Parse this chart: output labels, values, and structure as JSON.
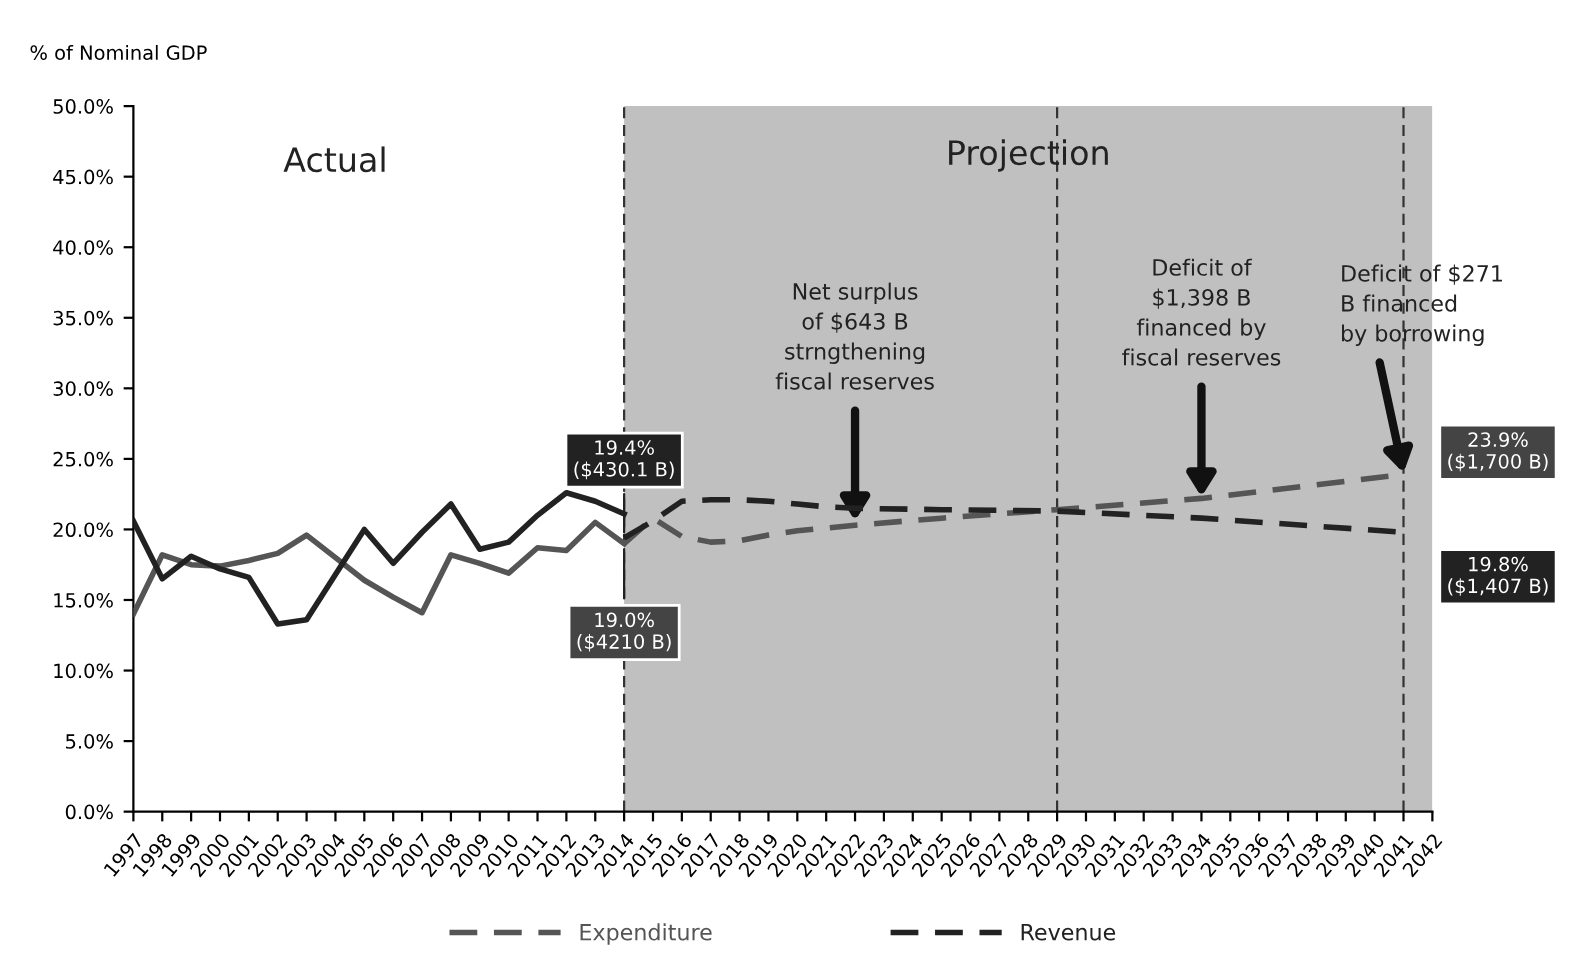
{
  "chart_data": {
    "type": "line",
    "ylabel": "% of Nominal GDP",
    "xlim": [
      1997,
      2042
    ],
    "xticks": [
      1997,
      1998,
      1999,
      2000,
      2001,
      2002,
      2003,
      2004,
      2005,
      2006,
      2007,
      2008,
      2009,
      2010,
      2011,
      2012,
      2013,
      2014,
      2015,
      2016,
      2017,
      2018,
      2019,
      2020,
      2021,
      2022,
      2023,
      2024,
      2025,
      2026,
      2027,
      2028,
      2029,
      2030,
      2031,
      2032,
      2033,
      2034,
      2035,
      2036,
      2037,
      2038,
      2039,
      2040,
      2041,
      2042
    ],
    "ylim": [
      0,
      50
    ],
    "yticks": [
      {
        "value": 0,
        "label": "0.0%"
      },
      {
        "value": 5,
        "label": "5.0%"
      },
      {
        "value": 10,
        "label": "10.0%"
      },
      {
        "value": 15,
        "label": "15.0%"
      },
      {
        "value": 20,
        "label": "20.0%"
      },
      {
        "value": 25,
        "label": "25.0%"
      },
      {
        "value": 30,
        "label": "30.0%"
      },
      {
        "value": 35,
        "label": "35.0%"
      },
      {
        "value": 40,
        "label": "40.0%"
      },
      {
        "value": 45,
        "label": "45.0%"
      },
      {
        "value": 50,
        "label": "50.0%"
      }
    ],
    "series": [
      {
        "color": "#555555",
        "line_style": "solid",
        "x": [
          1997,
          1998,
          1999,
          2000,
          2001,
          2002,
          2003,
          2004,
          2005,
          2006,
          2007,
          2008,
          2009,
          2010,
          2011,
          2012,
          2013,
          2014
        ],
        "values": [
          14.0,
          18.2,
          17.5,
          17.4,
          17.8,
          18.3,
          19.6,
          18.0,
          16.4,
          15.2,
          14.1,
          18.2,
          17.6,
          16.9,
          18.7,
          18.5,
          20.5,
          19.0
        ]
      },
      {
        "color": "#222222",
        "line_style": "solid",
        "x": [
          1997,
          1998,
          1999,
          2000,
          2001,
          2002,
          2003,
          2004,
          2005,
          2006,
          2007,
          2008,
          2009,
          2010,
          2011,
          2012,
          2013,
          2014
        ],
        "values": [
          20.6,
          16.5,
          18.1,
          17.2,
          16.6,
          13.3,
          13.6,
          16.8,
          20.0,
          17.6,
          19.8,
          21.8,
          18.6,
          19.1,
          21.0,
          22.6,
          22.0,
          21.1
        ]
      },
      {
        "name": "Expenditure",
        "color": "#555555",
        "line_style": "dashed",
        "x": [
          2014,
          2015,
          2016,
          2017,
          2018,
          2019,
          2020,
          2021,
          2022,
          2025,
          2029,
          2034,
          2041
        ],
        "values": [
          19.0,
          20.8,
          19.5,
          19.1,
          19.2,
          19.6,
          19.9,
          20.1,
          20.3,
          20.8,
          21.4,
          22.2,
          23.9
        ]
      },
      {
        "name": "Revenue",
        "color": "#222222",
        "line_style": "dashed",
        "x": [
          2014,
          2015,
          2016,
          2017,
          2018,
          2019,
          2020,
          2021,
          2022,
          2025,
          2029,
          2034,
          2041
        ],
        "values": [
          19.4,
          20.6,
          22.0,
          22.1,
          22.1,
          22.0,
          21.8,
          21.6,
          21.5,
          21.4,
          21.3,
          20.8,
          19.8
        ]
      }
    ],
    "bands": [
      {
        "axis": "x",
        "from": 2014,
        "to": 2042,
        "label": "Projection",
        "color": "#c0c0c0"
      }
    ],
    "ref_lines": [
      {
        "axis": "x",
        "value": 2014,
        "line_style": "dashed"
      },
      {
        "axis": "x",
        "value": 2029,
        "line_style": "dashed"
      },
      {
        "axis": "x",
        "value": 2041,
        "line_style": "dashed"
      }
    ],
    "annotations": [
      "Actual",
      {
        "text": "Net surplus\nof $643 B\nstrngthening\nfiscal reserves",
        "x": 2022,
        "y": 20.6
      },
      {
        "text": "Deficit of\n$1,398 B\nfinanced by\nfiscal reserves",
        "x": 2034,
        "y": 22.3
      },
      {
        "text": "Deficit of $271\nB financed\nby borrowing",
        "x": 2041,
        "y": 24.0
      },
      {
        "text": "19.4%\n($430.1 B)",
        "x": 2014,
        "y": 19.4
      },
      {
        "text": "19.0%\n($4210 B)",
        "x": 2014,
        "y": 19.0
      },
      {
        "text": "23.9%\n($1,700 B)",
        "x": 2041,
        "y": 23.9
      },
      {
        "text": "19.8%\n($1,407 B)",
        "x": 2041,
        "y": 19.8
      }
    ],
    "legend": "bottom",
    "grid": false
  }
}
